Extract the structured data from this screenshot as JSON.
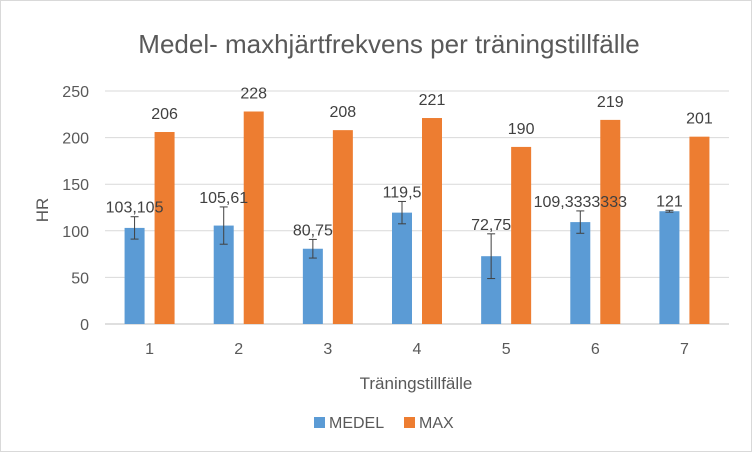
{
  "chart_data": {
    "type": "bar",
    "title": "Medel- maxhjärtfrekvens per träningstillfälle",
    "xlabel": "Träningstillfälle",
    "ylabel": "HR",
    "categories": [
      "1",
      "2",
      "3",
      "4",
      "5",
      "6",
      "7"
    ],
    "ylim": [
      0,
      250
    ],
    "yticks": [
      0,
      50,
      100,
      150,
      200,
      250
    ],
    "grid": true,
    "legend_position": "bottom",
    "series": [
      {
        "name": "MEDEL",
        "color": "#5b9bd5",
        "values": [
          103.105,
          105.61,
          80.75,
          119.5,
          72.75,
          109.3333333,
          121
        ],
        "labels": [
          "103,105",
          "105,61",
          "80,75",
          "119,5",
          "72,75",
          "109,3333333",
          "121"
        ],
        "error": [
          12,
          20,
          10,
          12,
          24,
          12,
          1
        ]
      },
      {
        "name": "MAX",
        "color": "#ed7d31",
        "values": [
          206,
          228,
          208,
          221,
          190,
          219,
          201
        ],
        "labels": [
          "206",
          "228",
          "208",
          "221",
          "190",
          "219",
          "201"
        ]
      }
    ]
  }
}
